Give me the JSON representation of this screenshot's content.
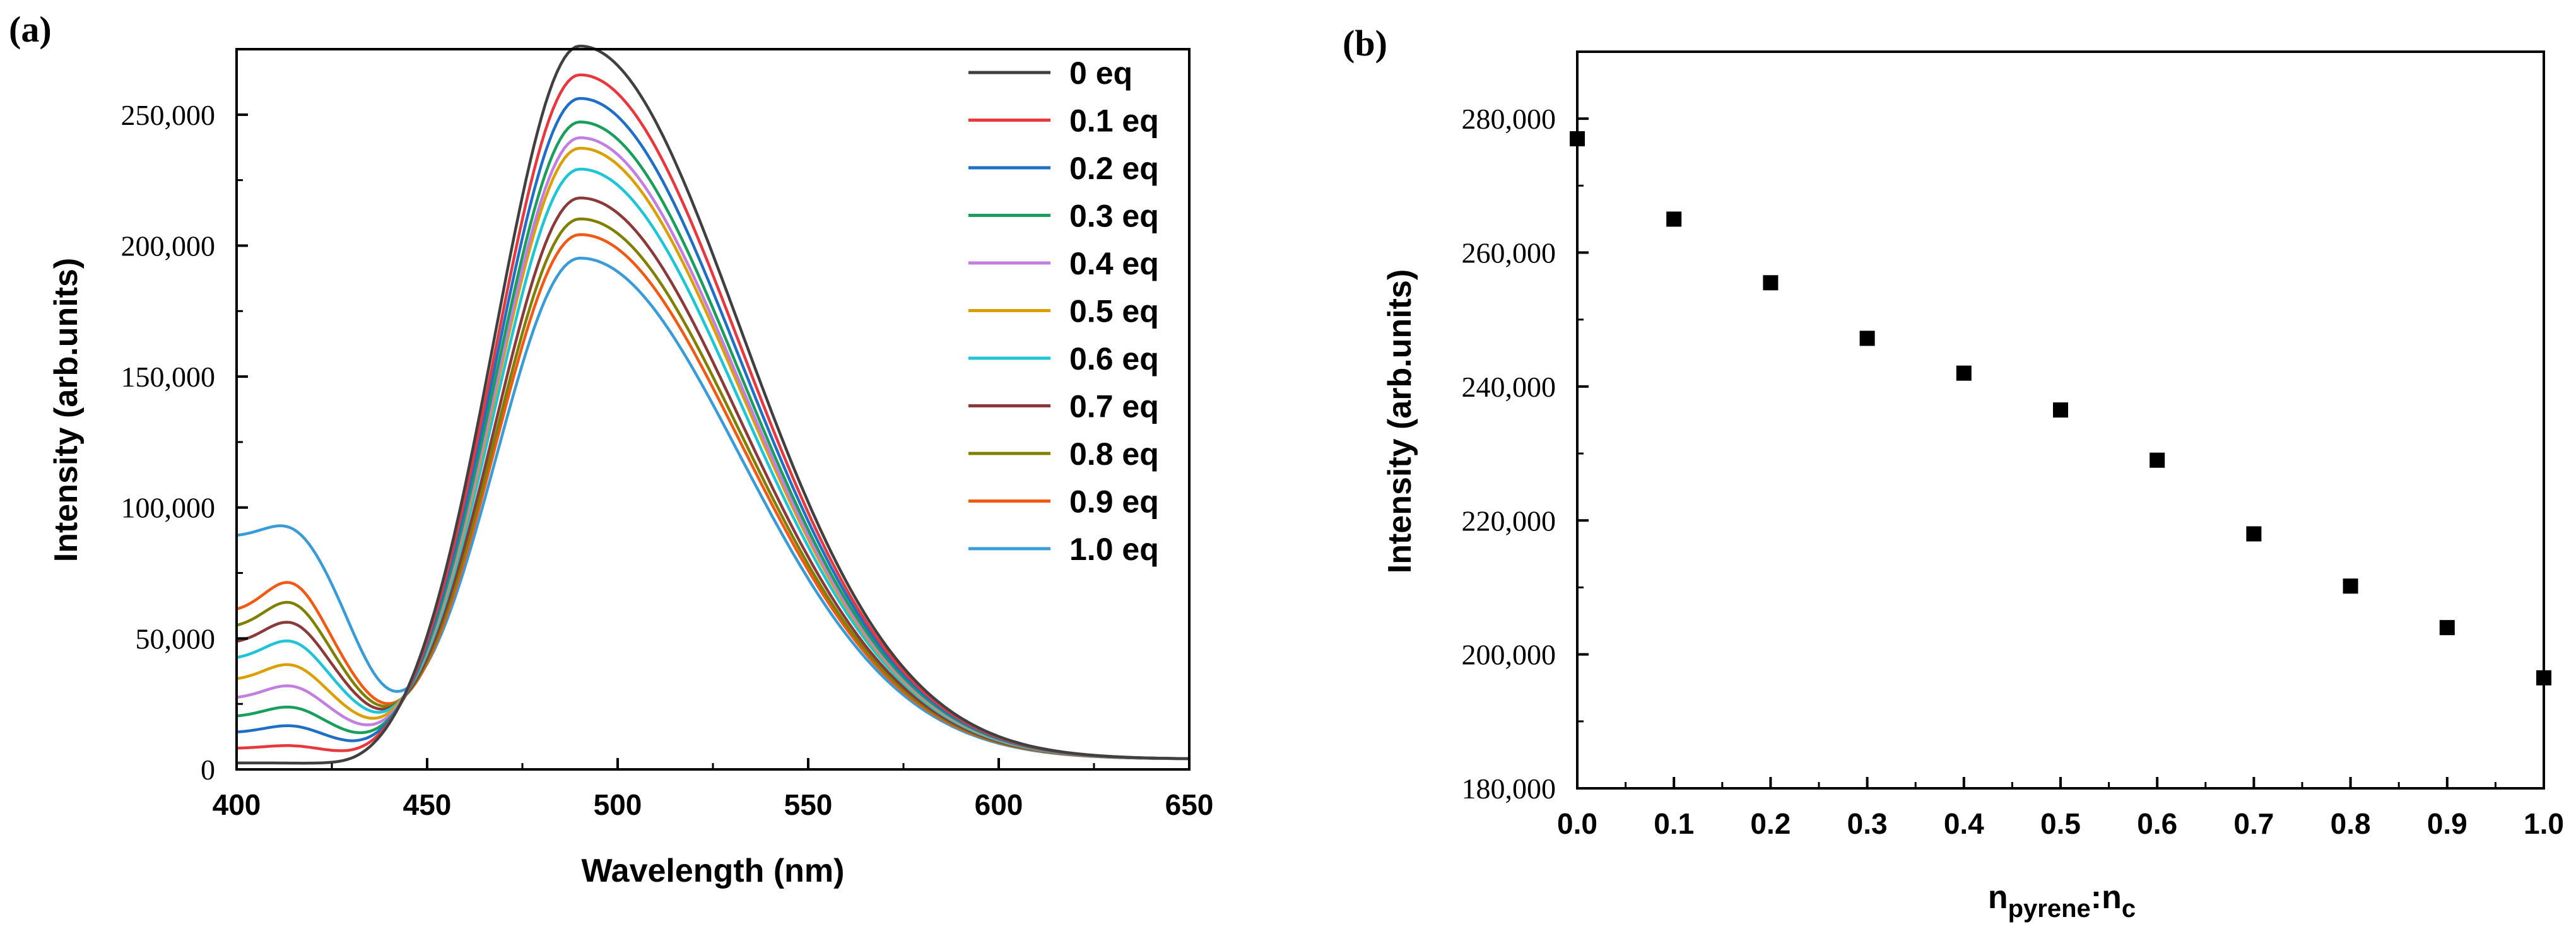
{
  "figure": {
    "panel_a_label": "(a)",
    "panel_b_label": "(b)"
  },
  "chart_data": [
    {
      "type": "line",
      "panel": "(a)",
      "title": "",
      "xlabel": "Wavelength (nm)",
      "ylabel": "Intensity (arb.units)",
      "xlim": [
        400,
        650
      ],
      "ylim": [
        0,
        275000
      ],
      "x_ticks": [
        400,
        450,
        500,
        550,
        600,
        650
      ],
      "y_ticks": [
        0,
        50000,
        100000,
        150000,
        200000,
        250000
      ],
      "x_tick_labels": [
        "400",
        "450",
        "500",
        "550",
        "600",
        "650"
      ],
      "y_tick_labels": [
        "0",
        "50,000",
        "100,000",
        "150,000",
        "200,000",
        "250,000"
      ],
      "legend_position": "top-right",
      "shared_params": {
        "peak_x": 490,
        "sigma_left": 22,
        "sigma_right": 42,
        "rise_center": 432,
        "rise_width": 6,
        "tail_value_650": 7000
      },
      "series": [
        {
          "name": "0 eq",
          "color": "#404040",
          "peak": 274000,
          "base": 2500,
          "shoulder": 0
        },
        {
          "name": "0.1 eq",
          "color": "#e8383d",
          "peak": 263000,
          "base": 8000,
          "shoulder": 1500
        },
        {
          "name": "0.2 eq",
          "color": "#1f6fc6",
          "peak": 254000,
          "base": 14000,
          "shoulder": 3500
        },
        {
          "name": "0.3 eq",
          "color": "#1a9e5c",
          "peak": 245000,
          "base": 20000,
          "shoulder": 5000
        },
        {
          "name": "0.4 eq",
          "color": "#c27ee0",
          "peak": 239000,
          "base": 27000,
          "shoulder": 6500
        },
        {
          "name": "0.5 eq",
          "color": "#d9a000",
          "peak": 235000,
          "base": 34000,
          "shoulder": 8000
        },
        {
          "name": "0.6 eq",
          "color": "#1fc5d6",
          "peak": 227000,
          "base": 42000,
          "shoulder": 9500
        },
        {
          "name": "0.7 eq",
          "color": "#8b3a3a",
          "peak": 216000,
          "base": 48000,
          "shoulder": 11000
        },
        {
          "name": "0.8 eq",
          "color": "#808000",
          "peak": 208000,
          "base": 54000,
          "shoulder": 13000
        },
        {
          "name": "0.9 eq",
          "color": "#f05a14",
          "peak": 202000,
          "base": 60000,
          "shoulder": 15000
        },
        {
          "name": "1.0 eq",
          "color": "#3a9bd9",
          "peak": 193000,
          "base": 89000,
          "shoulder": 8000
        }
      ]
    },
    {
      "type": "scatter",
      "panel": "(b)",
      "title": "",
      "xlabel_main": "n",
      "xlabel_sub1": "pyrene",
      "xlabel_sep": ":n",
      "xlabel_sub2": "c",
      "ylabel": "Intensity (arb.units)",
      "xlim": [
        0.0,
        1.0
      ],
      "ylim": [
        180000,
        290000
      ],
      "x_ticks": [
        0.0,
        0.1,
        0.2,
        0.3,
        0.4,
        0.5,
        0.6,
        0.7,
        0.8,
        0.9,
        1.0
      ],
      "y_ticks": [
        180000,
        200000,
        220000,
        240000,
        260000,
        280000
      ],
      "x_tick_labels": [
        "0.0",
        "0.1",
        "0.2",
        "0.3",
        "0.4",
        "0.5",
        "0.6",
        "0.7",
        "0.8",
        "0.9",
        "1.0"
      ],
      "y_tick_labels": [
        "180,000",
        "200,000",
        "220,000",
        "240,000",
        "260,000",
        "280,000"
      ],
      "marker_color": "#000000",
      "x": [
        0.0,
        0.1,
        0.2,
        0.3,
        0.4,
        0.5,
        0.6,
        0.7,
        0.8,
        0.9,
        1.0
      ],
      "y": [
        277000,
        265000,
        255500,
        247200,
        242000,
        236500,
        229000,
        218000,
        210200,
        204000,
        196500
      ]
    }
  ]
}
